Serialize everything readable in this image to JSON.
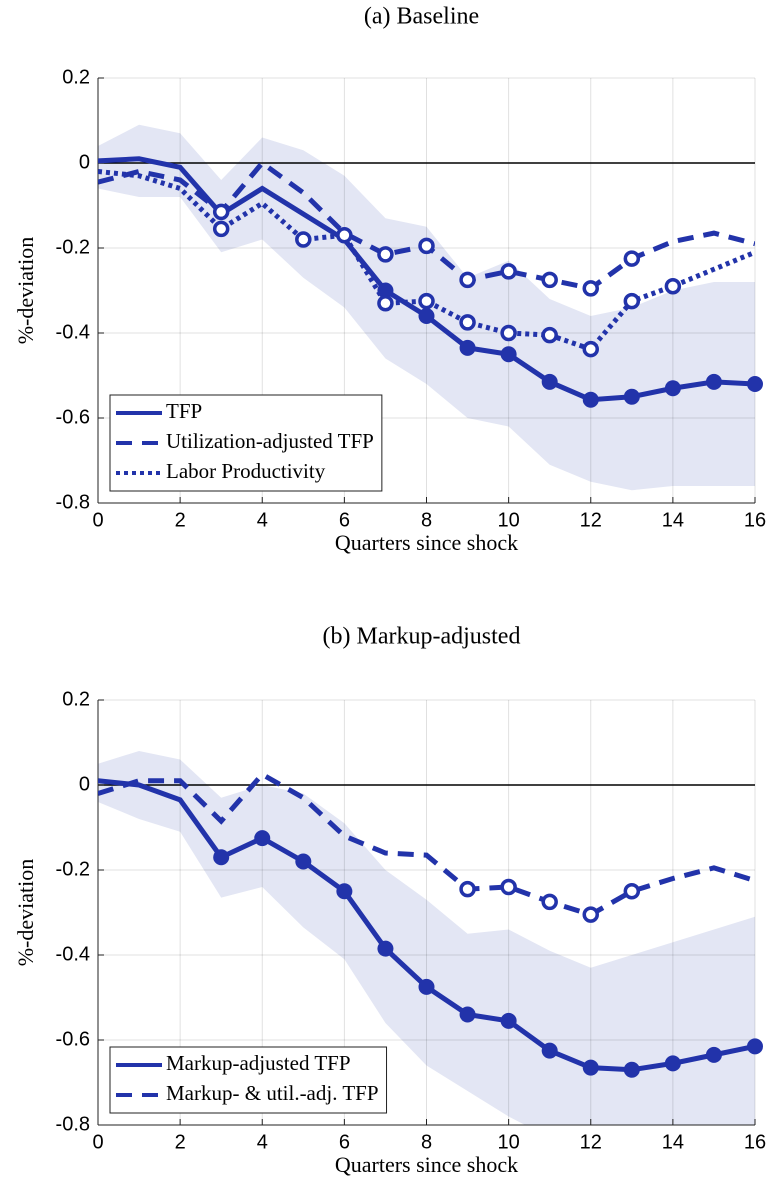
{
  "chart_data": [
    {
      "type": "line",
      "title": "(a) Baseline",
      "xlabel": "Quarters since shock",
      "ylabel": "%-deviation",
      "x": [
        0,
        1,
        2,
        3,
        4,
        5,
        6,
        7,
        8,
        9,
        10,
        11,
        12,
        13,
        14,
        15,
        16
      ],
      "xlim": [
        0,
        16
      ],
      "xticks": [
        0,
        2,
        4,
        6,
        8,
        10,
        12,
        14,
        16
      ],
      "ylim": [
        -0.8,
        0.2
      ],
      "yticks": [
        -0.8,
        -0.6,
        -0.4,
        -0.2,
        0,
        0.2
      ],
      "grid": true,
      "hline": 0,
      "legend": "lower left",
      "band": {
        "color": "#e3e6f4",
        "upper": [
          0.04,
          0.09,
          0.07,
          -0.04,
          0.06,
          0.03,
          -0.03,
          -0.13,
          -0.15,
          -0.27,
          -0.23,
          -0.32,
          -0.36,
          -0.34,
          -0.3,
          -0.28,
          -0.28
        ],
        "lower": [
          -0.06,
          -0.08,
          -0.08,
          -0.21,
          -0.18,
          -0.27,
          -0.34,
          -0.46,
          -0.52,
          -0.6,
          -0.62,
          -0.71,
          -0.75,
          -0.77,
          -0.76,
          -0.76,
          -0.76
        ]
      },
      "series": [
        {
          "name": "TFP",
          "color": "#2233aa",
          "style": "solid",
          "marker_fill": "filled",
          "markers": [
            7,
            8,
            9,
            10,
            11,
            12,
            13,
            14,
            15,
            16
          ],
          "values": [
            0.005,
            0.01,
            -0.01,
            -0.12,
            -0.06,
            -0.12,
            -0.18,
            -0.3,
            -0.36,
            -0.435,
            -0.45,
            -0.515,
            -0.557,
            -0.55,
            -0.53,
            -0.515,
            -0.52
          ]
        },
        {
          "name": "Utilization-adjusted TFP",
          "color": "#2233aa",
          "style": "dashed",
          "marker_fill": "open",
          "markers": [
            3,
            7,
            8,
            9,
            10,
            11,
            12,
            13
          ],
          "values": [
            -0.045,
            -0.02,
            -0.04,
            -0.115,
            0.0,
            -0.07,
            -0.165,
            -0.215,
            -0.195,
            -0.275,
            -0.255,
            -0.275,
            -0.295,
            -0.225,
            -0.185,
            -0.165,
            -0.19
          ]
        },
        {
          "name": "Labor Productivity",
          "color": "#2233aa",
          "style": "dotted",
          "marker_fill": "open",
          "markers": [
            3,
            5,
            6,
            7,
            8,
            9,
            10,
            11,
            12,
            13,
            14
          ],
          "values": [
            -0.02,
            -0.03,
            -0.06,
            -0.155,
            -0.095,
            -0.18,
            -0.17,
            -0.33,
            -0.325,
            -0.375,
            -0.4,
            -0.405,
            -0.438,
            -0.325,
            -0.29,
            -0.25,
            -0.21
          ]
        }
      ]
    },
    {
      "type": "line",
      "title": "(b) Markup-adjusted",
      "xlabel": "Quarters since shock",
      "ylabel": "%-deviation",
      "x": [
        0,
        1,
        2,
        3,
        4,
        5,
        6,
        7,
        8,
        9,
        10,
        11,
        12,
        13,
        14,
        15,
        16
      ],
      "xlim": [
        0,
        16
      ],
      "xticks": [
        0,
        2,
        4,
        6,
        8,
        10,
        12,
        14,
        16
      ],
      "ylim": [
        -0.8,
        0.2
      ],
      "yticks": [
        -0.8,
        -0.6,
        -0.4,
        -0.2,
        0,
        0.2
      ],
      "grid": true,
      "hline": 0,
      "legend": "lower left",
      "band": {
        "color": "#e3e6f4",
        "upper": [
          0.05,
          0.08,
          0.06,
          -0.03,
          0.0,
          -0.02,
          -0.09,
          -0.2,
          -0.27,
          -0.35,
          -0.34,
          -0.39,
          -0.43,
          -0.4,
          -0.37,
          -0.34,
          -0.31
        ],
        "lower": [
          -0.04,
          -0.08,
          -0.11,
          -0.265,
          -0.24,
          -0.335,
          -0.41,
          -0.56,
          -0.66,
          -0.72,
          -0.78,
          -0.83,
          -0.86,
          -0.87,
          -0.85,
          -0.85,
          -0.85
        ]
      },
      "series": [
        {
          "name": "Markup-adjusted TFP",
          "color": "#2233aa",
          "style": "solid",
          "marker_fill": "filled",
          "markers": [
            3,
            4,
            5,
            6,
            7,
            8,
            9,
            10,
            11,
            12,
            13,
            14,
            15,
            16
          ],
          "values": [
            0.01,
            0.0,
            -0.035,
            -0.17,
            -0.125,
            -0.18,
            -0.25,
            -0.385,
            -0.475,
            -0.54,
            -0.555,
            -0.625,
            -0.665,
            -0.67,
            -0.655,
            -0.635,
            -0.615
          ]
        },
        {
          "name": "Markup- & util.-adj. TFP",
          "color": "#2233aa",
          "style": "dashed",
          "marker_fill": "open",
          "markers": [
            9,
            10,
            11,
            12,
            13
          ],
          "values": [
            -0.02,
            0.01,
            0.01,
            -0.085,
            0.025,
            -0.03,
            -0.12,
            -0.16,
            -0.165,
            -0.245,
            -0.24,
            -0.275,
            -0.305,
            -0.25,
            -0.22,
            -0.195,
            -0.225
          ]
        }
      ]
    }
  ]
}
